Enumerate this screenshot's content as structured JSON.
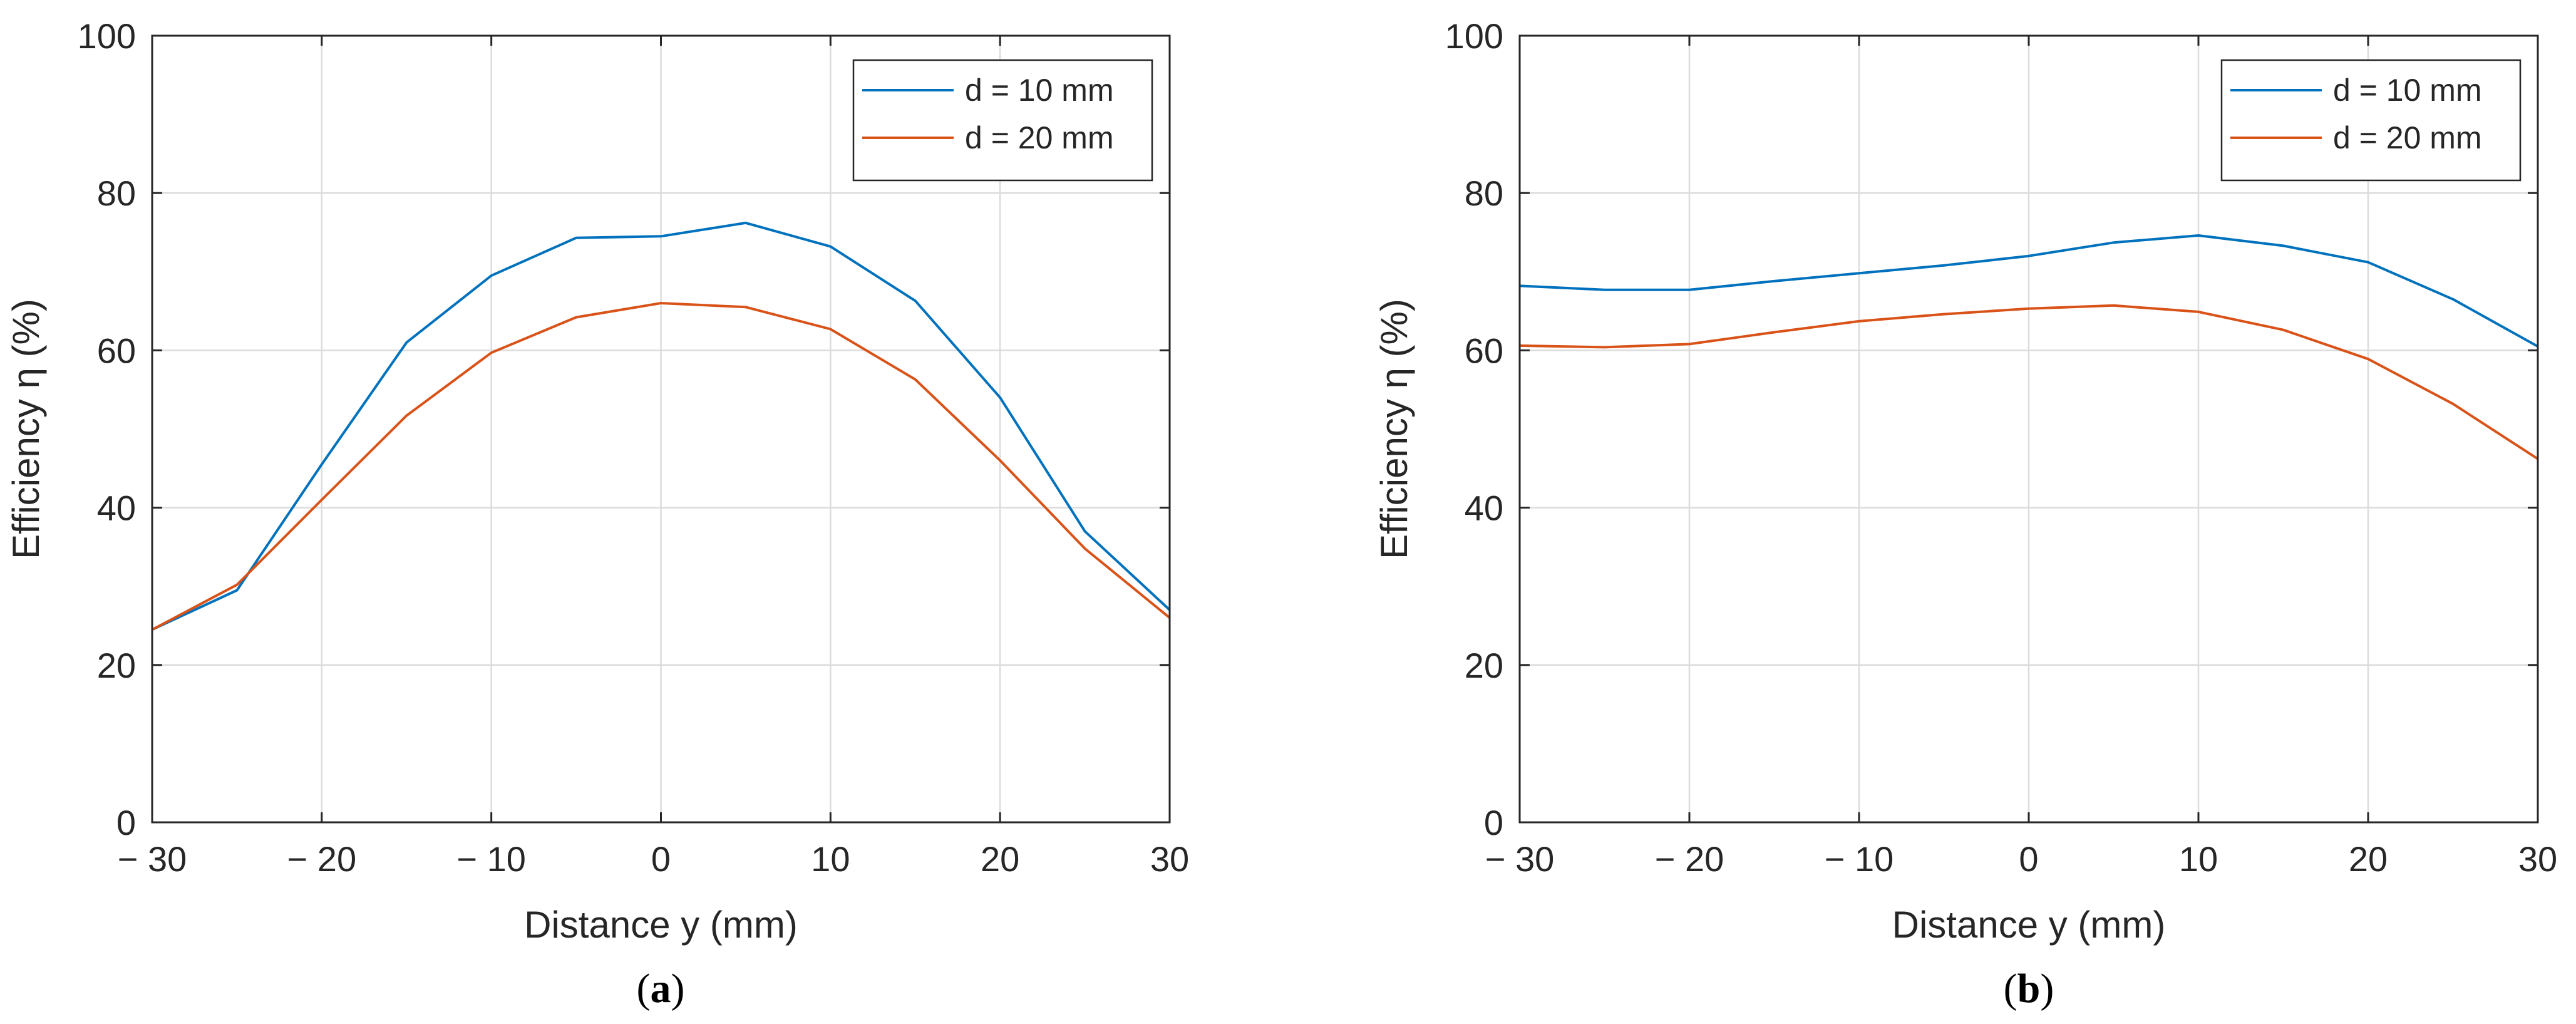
{
  "chart_data": [
    {
      "type": "line",
      "caption_letter": "a",
      "caption_open": "(",
      "caption_close": ")",
      "xlabel": "Distance y (mm)",
      "ylabel": "Efficiency η (%)",
      "xlim": [
        -30,
        30
      ],
      "ylim": [
        0,
        100
      ],
      "xticks": [
        -30,
        -20,
        -10,
        0,
        10,
        20,
        30
      ],
      "xtick_labels": [
        "− 30",
        "− 20",
        "− 10",
        "0",
        "10",
        "20",
        "30"
      ],
      "yticks": [
        0,
        20,
        40,
        60,
        80,
        100
      ],
      "ytick_labels": [
        "0",
        "20",
        "40",
        "60",
        "80",
        "100"
      ],
      "grid": true,
      "legend_position": "top-right",
      "x": [
        -30,
        -25,
        -20,
        -15,
        -10,
        -5,
        0,
        5,
        10,
        15,
        20,
        25,
        30
      ],
      "series": [
        {
          "name": "d = 10 mm",
          "color": "#0072BD",
          "values": [
            24.5,
            29.5,
            45.5,
            61,
            69.5,
            74.3,
            74.5,
            76.2,
            73.2,
            66.3,
            54,
            37,
            27
          ]
        },
        {
          "name": "d = 20 mm",
          "color": "#D95319",
          "values": [
            24.5,
            30.2,
            41,
            51.7,
            59.7,
            64.2,
            66,
            65.5,
            62.7,
            56.3,
            46,
            34.8,
            26
          ]
        }
      ]
    },
    {
      "type": "line",
      "caption_letter": "b",
      "caption_open": "(",
      "caption_close": ")",
      "xlabel": "Distance y (mm)",
      "ylabel": "Efficiency η (%)",
      "xlim": [
        -30,
        30
      ],
      "ylim": [
        0,
        100
      ],
      "xticks": [
        -30,
        -20,
        -10,
        0,
        10,
        20,
        30
      ],
      "xtick_labels": [
        "− 30",
        "− 20",
        "− 10",
        "0",
        "10",
        "20",
        "30"
      ],
      "yticks": [
        0,
        20,
        40,
        60,
        80,
        100
      ],
      "ytick_labels": [
        "0",
        "20",
        "40",
        "60",
        "80",
        "100"
      ],
      "grid": true,
      "legend_position": "top-right",
      "x": [
        -30,
        -25,
        -20,
        -15,
        -10,
        -5,
        0,
        5,
        10,
        15,
        20,
        25,
        30
      ],
      "series": [
        {
          "name": "d = 10 mm",
          "color": "#0072BD",
          "values": [
            68.2,
            67.7,
            67.7,
            68.8,
            69.8,
            70.8,
            72,
            73.7,
            74.6,
            73.3,
            71.2,
            66.5,
            60.5
          ]
        },
        {
          "name": "d = 20 mm",
          "color": "#D95319",
          "values": [
            60.6,
            60.4,
            60.8,
            62.3,
            63.7,
            64.6,
            65.3,
            65.7,
            64.9,
            62.6,
            58.9,
            53.2,
            46.2
          ]
        }
      ]
    }
  ]
}
